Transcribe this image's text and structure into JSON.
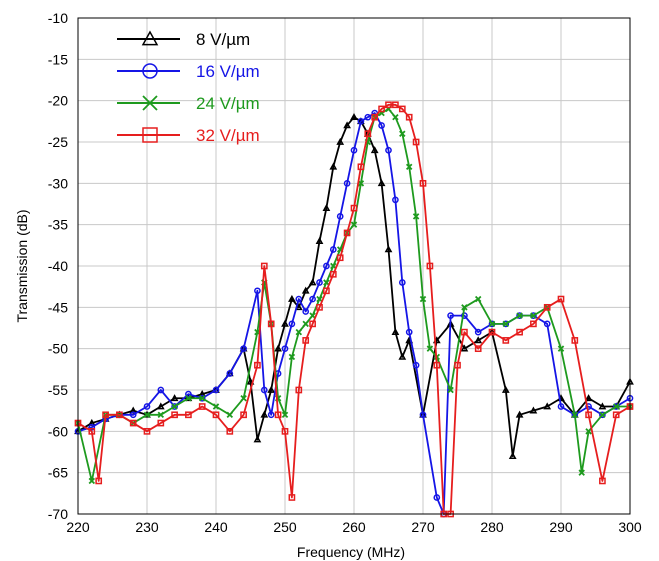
{
  "chart_data": {
    "type": "line",
    "title": "",
    "xlabel": "Frequency (MHz)",
    "ylabel": "Transmission (dB)",
    "xlim": [
      220,
      300
    ],
    "ylim": [
      -70,
      -10
    ],
    "xticks": [
      220,
      230,
      240,
      250,
      260,
      270,
      280,
      290,
      300
    ],
    "yticks": [
      -10,
      -15,
      -20,
      -25,
      -30,
      -35,
      -40,
      -45,
      -50,
      -55,
      -60,
      -65,
      -70
    ],
    "grid": true,
    "legend_position": "top-left",
    "series": [
      {
        "name": "8 V/µm",
        "color": "#000000",
        "marker": "triangle",
        "x": [
          220,
          222,
          224,
          226,
          228,
          230,
          232,
          234,
          236,
          238,
          240,
          242,
          244,
          245,
          246,
          247,
          248,
          249,
          250,
          251,
          252,
          253,
          254,
          255,
          256,
          257,
          258,
          259,
          260,
          261,
          262,
          263,
          264,
          265,
          266,
          267,
          268,
          270,
          272,
          274,
          276,
          278,
          280,
          282,
          283,
          284,
          286,
          288,
          290,
          292,
          294,
          296,
          298,
          300
        ],
        "y": [
          -60,
          -59,
          -58.5,
          -58,
          -57.5,
          -58,
          -57,
          -56,
          -56,
          -55.5,
          -55,
          -53,
          -50,
          -54,
          -61,
          -58,
          -55,
          -50,
          -47,
          -44,
          -45,
          -43,
          -42,
          -37,
          -33,
          -28,
          -25,
          -23,
          -22,
          -22.5,
          -24,
          -26,
          -30,
          -38,
          -48,
          -51,
          -49,
          -58,
          -49,
          -47,
          -50,
          -49,
          -48,
          -55,
          -63,
          -58,
          -57.5,
          -57,
          -56,
          -58,
          -56,
          -57,
          -57,
          -54
        ]
      },
      {
        "name": "16 V/µm",
        "color": "#1515e6",
        "marker": "circle",
        "x": [
          220,
          222,
          224,
          226,
          228,
          230,
          232,
          234,
          236,
          238,
          240,
          242,
          244,
          246,
          247,
          248,
          249,
          250,
          251,
          252,
          253,
          254,
          255,
          256,
          257,
          258,
          259,
          260,
          261,
          262,
          263,
          264,
          265,
          266,
          267,
          268,
          269,
          270,
          272,
          273,
          274,
          276,
          278,
          280,
          282,
          284,
          286,
          288,
          290,
          292,
          294,
          296,
          298,
          300
        ],
        "y": [
          -60,
          -59.5,
          -58.5,
          -58,
          -58,
          -57,
          -55,
          -57,
          -55.5,
          -56,
          -55,
          -53,
          -50,
          -43,
          -55,
          -58,
          -53,
          -50,
          -47,
          -44,
          -45.5,
          -44,
          -42,
          -40,
          -38,
          -34,
          -30,
          -26,
          -22.5,
          -22,
          -21.5,
          -23,
          -26,
          -32,
          -42,
          -48,
          -52,
          -58,
          -68,
          -70,
          -46,
          -46,
          -48,
          -47,
          -47,
          -46,
          -46,
          -47,
          -57,
          -58,
          -57,
          -58,
          -57,
          -56
        ]
      },
      {
        "name": "24 V/µm",
        "color": "#1e9a1e",
        "marker": "x",
        "x": [
          220,
          222,
          224,
          226,
          228,
          230,
          232,
          234,
          236,
          238,
          240,
          242,
          244,
          246,
          247,
          248,
          249,
          250,
          251,
          252,
          253,
          254,
          255,
          256,
          257,
          258,
          259,
          260,
          261,
          262,
          263,
          264,
          265,
          266,
          267,
          268,
          269,
          270,
          271,
          272,
          274,
          276,
          278,
          280,
          282,
          284,
          286,
          288,
          290,
          292,
          293,
          294,
          296,
          298,
          300
        ],
        "y": [
          -59,
          -66,
          -58,
          -58,
          -59,
          -58,
          -58,
          -57,
          -56,
          -56,
          -57,
          -58,
          -56,
          -48,
          -42,
          -47,
          -56,
          -58,
          -51,
          -48,
          -47,
          -46,
          -44,
          -42,
          -40,
          -38,
          -36,
          -35,
          -30,
          -25,
          -22,
          -21.5,
          -21,
          -22,
          -24,
          -28,
          -34,
          -44,
          -50,
          -51,
          -55,
          -45,
          -44,
          -47,
          -47,
          -46,
          -46,
          -45,
          -50,
          -58,
          -65,
          -60,
          -58,
          -57,
          -57
        ]
      },
      {
        "name": "32 V/µm",
        "color": "#e61e1e",
        "marker": "square",
        "x": [
          220,
          222,
          223,
          224,
          226,
          228,
          230,
          232,
          234,
          236,
          238,
          240,
          242,
          244,
          246,
          247,
          248,
          249,
          250,
          251,
          252,
          253,
          254,
          255,
          256,
          257,
          258,
          259,
          260,
          261,
          262,
          263,
          264,
          265,
          266,
          267,
          268,
          269,
          270,
          271,
          272,
          273,
          274,
          275,
          276,
          278,
          280,
          282,
          284,
          286,
          288,
          290,
          292,
          294,
          296,
          298,
          300
        ],
        "y": [
          -59,
          -60,
          -66,
          -58,
          -58,
          -59,
          -60,
          -59,
          -58,
          -58,
          -57,
          -58,
          -60,
          -58,
          -52,
          -40,
          -47,
          -58,
          -60,
          -68,
          -55,
          -49,
          -47,
          -45,
          -43,
          -41,
          -39,
          -36,
          -33,
          -28,
          -24,
          -22,
          -21,
          -20.5,
          -20.5,
          -21,
          -22,
          -25,
          -30,
          -40,
          -52,
          -70,
          -70,
          -52,
          -48,
          -50,
          -48,
          -49,
          -48,
          -47,
          -45,
          -44,
          -49,
          -58,
          -66,
          -58,
          -57
        ]
      }
    ]
  }
}
